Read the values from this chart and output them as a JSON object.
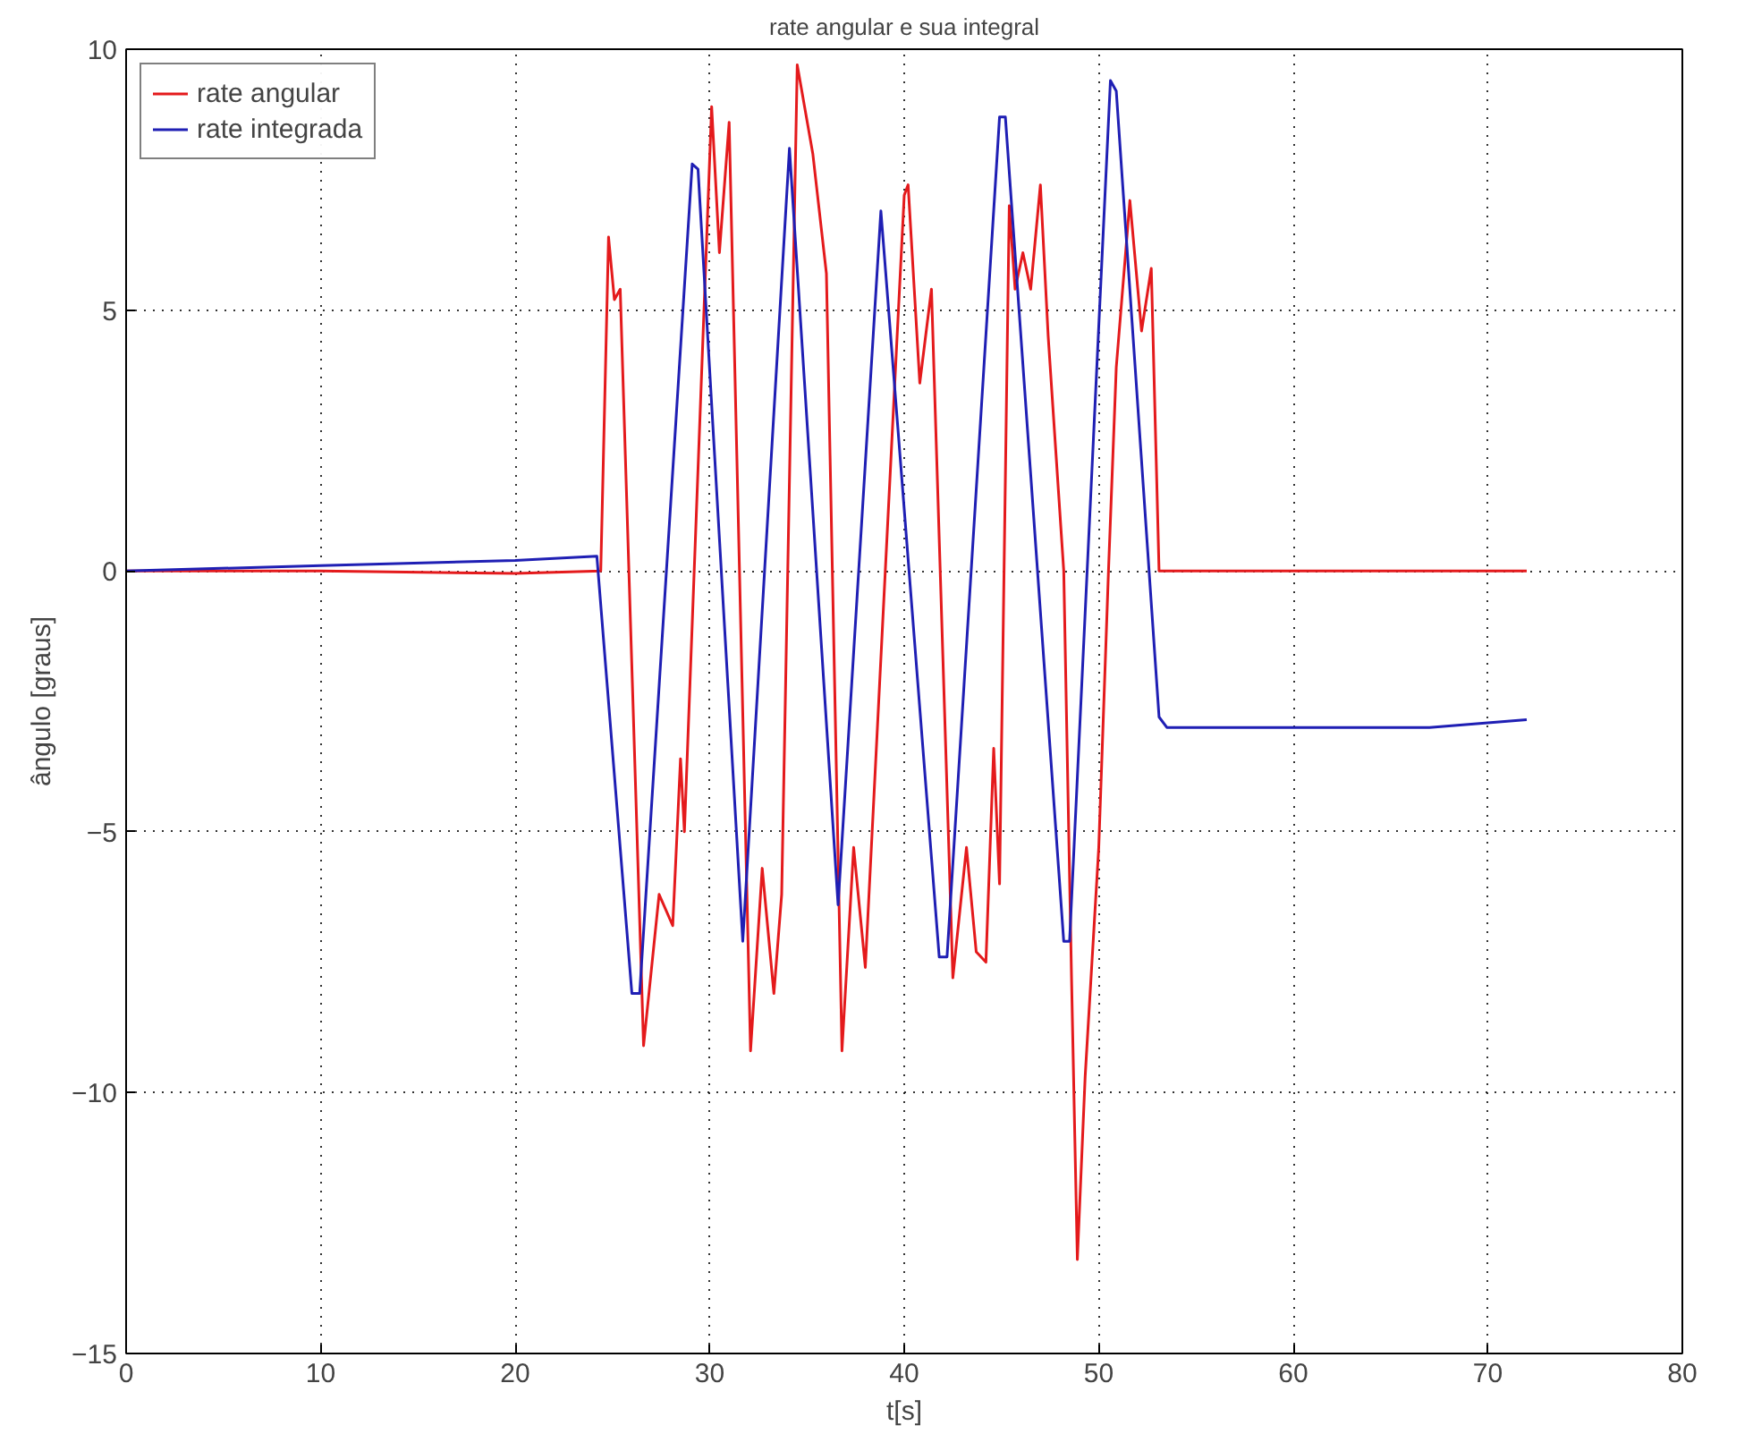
{
  "chart_data": {
    "type": "line",
    "title": "rate angular e sua integral",
    "xlabel": "t[s]",
    "ylabel": "ângulo [graus]",
    "xlim": [
      0,
      80
    ],
    "ylim": [
      -15,
      10
    ],
    "xticks": [
      0,
      10,
      20,
      30,
      40,
      50,
      60,
      70,
      80
    ],
    "yticks": [
      -15,
      -10,
      -5,
      0,
      5,
      10
    ],
    "grid": true,
    "legend": "top left",
    "series": [
      {
        "name": "rate angular",
        "color": "#e41a1c",
        "x": [
          0,
          10,
          20,
          24.4,
          24.8,
          25.1,
          25.4,
          26.6,
          27.4,
          28.1,
          28.5,
          28.7,
          30.1,
          30.5,
          31.0,
          32.1,
          32.7,
          33.3,
          33.7,
          34.5,
          35.3,
          36.0,
          36.8,
          37.4,
          38.0,
          40.0,
          40.2,
          40.8,
          41.4,
          42.5,
          43.2,
          43.7,
          44.2,
          44.6,
          44.9,
          45.4,
          45.7,
          46.1,
          46.5,
          47.0,
          47.4,
          48.2,
          48.6,
          48.9,
          49.3,
          50.0,
          50.5,
          50.9,
          51.6,
          52.2,
          52.7,
          53.1,
          60,
          72
        ],
        "values": [
          0,
          0,
          -0.05,
          0,
          6.4,
          5.2,
          5.4,
          -9.1,
          -6.2,
          -6.8,
          -3.6,
          -5.0,
          8.9,
          6.1,
          8.6,
          -9.2,
          -5.7,
          -8.1,
          -6.2,
          9.7,
          8.0,
          5.7,
          -9.2,
          -5.3,
          -7.6,
          7.2,
          7.4,
          3.6,
          5.4,
          -7.8,
          -5.3,
          -7.3,
          -7.5,
          -3.4,
          -6.0,
          7.0,
          5.4,
          6.1,
          5.4,
          7.4,
          4.5,
          0,
          -7.8,
          -13.2,
          -9.7,
          -5.3,
          0,
          3.9,
          7.1,
          4.6,
          5.8,
          0,
          0,
          0
        ]
      },
      {
        "name": "rate integrada",
        "color": "#1f1fb4",
        "x": [
          0,
          10,
          20,
          24.2,
          26.0,
          26.4,
          29.1,
          29.4,
          31.7,
          34.1,
          36.6,
          38.8,
          41.8,
          42.2,
          44.9,
          45.2,
          48.2,
          48.5,
          50.6,
          50.9,
          53.1,
          53.5,
          67,
          72
        ],
        "values": [
          0,
          0.1,
          0.2,
          0.28,
          -8.1,
          -8.1,
          7.8,
          7.7,
          -7.1,
          8.1,
          -6.4,
          6.9,
          -7.4,
          -7.4,
          8.7,
          8.7,
          -7.1,
          -7.1,
          9.4,
          9.2,
          -2.8,
          -3.0,
          -3.0,
          -2.85
        ]
      }
    ]
  }
}
